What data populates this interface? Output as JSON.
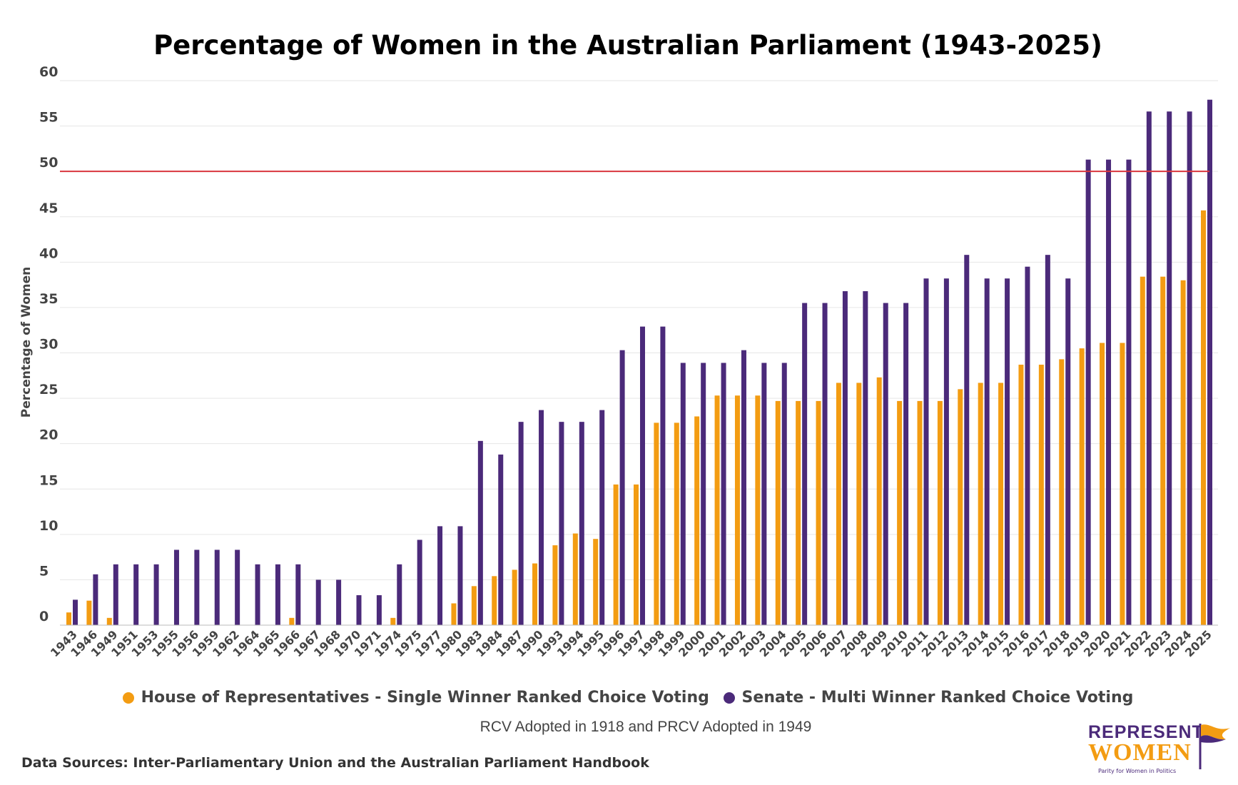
{
  "chart_data": {
    "type": "bar",
    "title": "Percentage of Women in the  Australian Parliament (1943-2025)",
    "ylabel": "Percentage of Women",
    "xlabel": "",
    "ylim": [
      0,
      60
    ],
    "yticks": [
      0,
      5,
      10,
      15,
      20,
      25,
      30,
      35,
      40,
      45,
      50,
      55,
      60
    ],
    "reference_line": 50,
    "categories": [
      "1943",
      "1946",
      "1949",
      "1951",
      "1953",
      "1955",
      "1956",
      "1959",
      "1962",
      "1964",
      "1965",
      "1966",
      "1967",
      "1968",
      "1970",
      "1971",
      "1974",
      "1975",
      "1977",
      "1980",
      "1983",
      "1984",
      "1987",
      "1990",
      "1993",
      "1994",
      "1995",
      "1996",
      "1997",
      "1998",
      "1999",
      "2000",
      "2001",
      "2002",
      "2003",
      "2004",
      "2005",
      "2006",
      "2007",
      "2008",
      "2009",
      "2010",
      "2011",
      "2012",
      "2013",
      "2014",
      "2015",
      "2016",
      "2017",
      "2018",
      "2019",
      "2020",
      "2021",
      "2022",
      "2023",
      "2024",
      "2025"
    ],
    "series": [
      {
        "name": "House of Representatives - Single Winner Ranked Choice Voting",
        "color": "#f39c12",
        "values": [
          1.4,
          2.7,
          0.8,
          0,
          0,
          0,
          0,
          0,
          0,
          0,
          0,
          0.8,
          0,
          0,
          0,
          0,
          0.8,
          0,
          0,
          2.4,
          4.3,
          5.4,
          6.1,
          6.8,
          8.8,
          10.1,
          9.5,
          15.5,
          15.5,
          22.3,
          22.3,
          23.0,
          25.3,
          25.3,
          25.3,
          24.7,
          24.7,
          24.7,
          26.7,
          26.7,
          27.3,
          24.7,
          24.7,
          24.7,
          26.0,
          26.7,
          26.7,
          28.7,
          28.7,
          29.3,
          30.5,
          31.1,
          31.1,
          38.4,
          38.4,
          38.0,
          45.7
        ]
      },
      {
        "name": "Senate - Multi Winner Ranked Choice Voting",
        "color": "#4b2a7a",
        "values": [
          2.8,
          5.6,
          6.7,
          6.7,
          6.7,
          8.3,
          8.3,
          8.3,
          8.3,
          6.7,
          6.7,
          6.7,
          5.0,
          5.0,
          3.3,
          3.3,
          6.7,
          9.4,
          10.9,
          10.9,
          20.3,
          18.8,
          22.4,
          23.7,
          22.4,
          22.4,
          23.7,
          30.3,
          32.9,
          32.9,
          28.9,
          28.9,
          28.9,
          30.3,
          28.9,
          28.9,
          35.5,
          35.5,
          36.8,
          36.8,
          35.5,
          35.5,
          38.2,
          38.2,
          40.8,
          38.2,
          38.2,
          39.5,
          40.8,
          38.2,
          51.3,
          51.3,
          51.3,
          56.6,
          56.6,
          56.6,
          57.9
        ]
      }
    ]
  },
  "legend": {
    "house": "House of Representatives - Single Winner Ranked Choice Voting",
    "senate": "Senate - Multi Winner Ranked Choice Voting"
  },
  "note": "RCV Adopted in 1918 and PRCV Adopted in 1949",
  "source": "Data Sources: Inter-Parliamentary Union and the Australian Parliament Handbook",
  "logo": {
    "line1": "REPRESENT",
    "line2": "WOMEN",
    "tagline": "Parity for Women in Politics"
  },
  "colors": {
    "house": "#f39c12",
    "senate": "#4b2a7a",
    "reference_line": "#d9363e",
    "grid": "#e6e6e6"
  }
}
